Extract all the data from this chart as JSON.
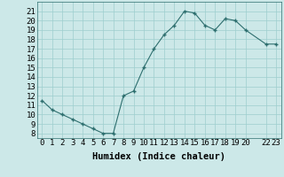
{
  "x": [
    0,
    1,
    2,
    3,
    4,
    5,
    6,
    7,
    8,
    9,
    10,
    11,
    12,
    13,
    14,
    15,
    16,
    17,
    18,
    19,
    20,
    22,
    23
  ],
  "y": [
    11.5,
    10.5,
    10.0,
    9.5,
    9.0,
    8.5,
    8.0,
    8.0,
    12.0,
    12.5,
    15.0,
    17.0,
    18.5,
    19.5,
    21.0,
    20.8,
    19.5,
    19.0,
    20.2,
    20.0,
    19.0,
    17.5,
    17.5
  ],
  "xtick_labels": [
    "0",
    "1",
    "2",
    "3",
    "4",
    "5",
    "6",
    "7",
    "8",
    "9",
    "10",
    "11",
    "12",
    "13",
    "14",
    "15",
    "16",
    "17",
    "18",
    "19",
    "20",
    "22",
    "23"
  ],
  "xtick_positions": [
    0,
    1,
    2,
    3,
    4,
    5,
    6,
    7,
    8,
    9,
    10,
    11,
    12,
    13,
    14,
    15,
    16,
    17,
    18,
    19,
    20,
    22,
    23
  ],
  "ytick_labels": [
    "8",
    "9",
    "10",
    "11",
    "12",
    "13",
    "14",
    "15",
    "16",
    "17",
    "18",
    "19",
    "20",
    "21"
  ],
  "ytick_positions": [
    8,
    9,
    10,
    11,
    12,
    13,
    14,
    15,
    16,
    17,
    18,
    19,
    20,
    21
  ],
  "xlim": [
    -0.5,
    23.5
  ],
  "ylim": [
    7.5,
    22.0
  ],
  "xlabel": "Humidex (Indice chaleur)",
  "line_color": "#2d6e6e",
  "marker_color": "#2d6e6e",
  "bg_color": "#cce8e8",
  "grid_color": "#9ecece",
  "xlabel_fontsize": 7.5,
  "tick_fontsize": 6.5
}
